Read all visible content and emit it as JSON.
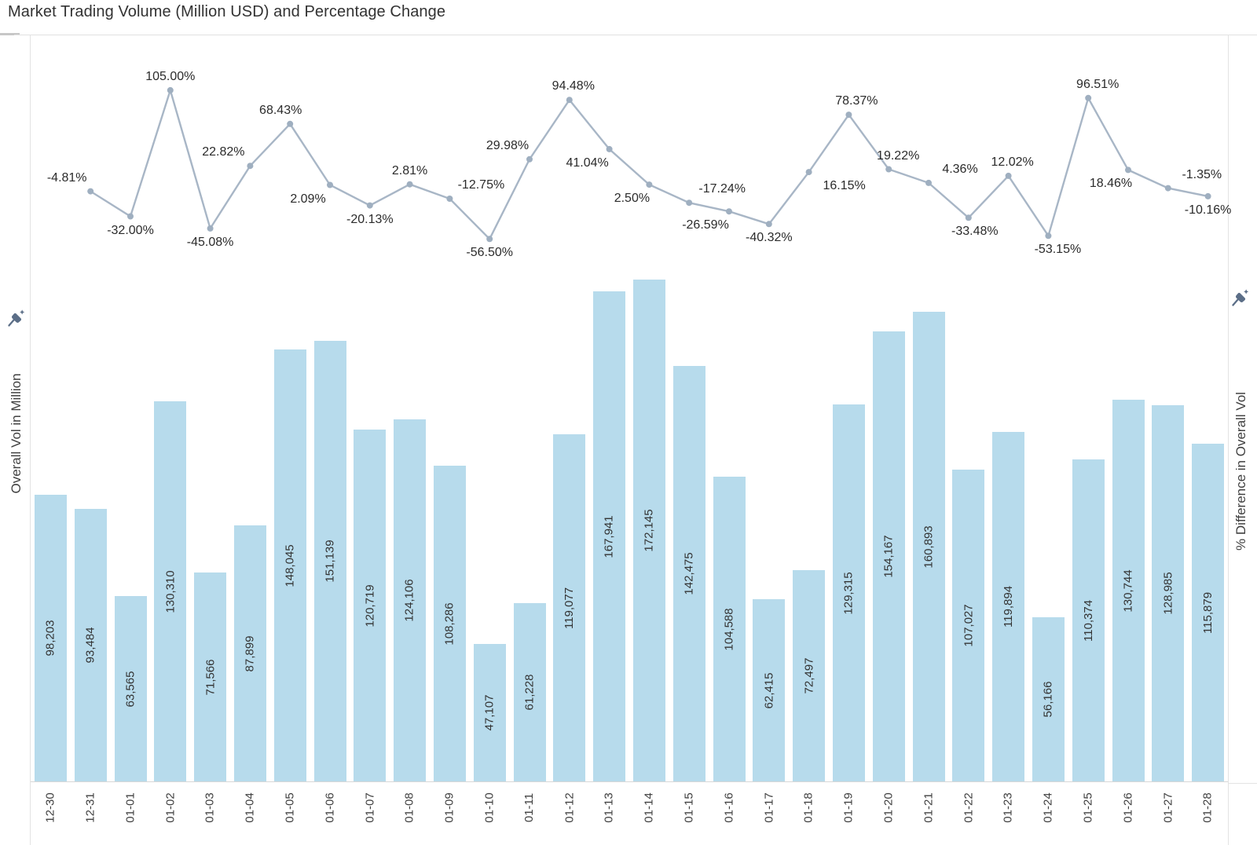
{
  "title": "Market Trading Volume (Million USD) and Percentage Change",
  "axes": {
    "left": {
      "label": "Overall Vol in Million"
    },
    "right": {
      "label": "% Difference in Overall Vol"
    }
  },
  "colors": {
    "bar_fill": "#b7dbec",
    "line_stroke": "#a8b6c6",
    "marker_fill": "#9fafc0",
    "percent_label": "#2b2b2b",
    "bar_label": "#333333",
    "axis_text": "#3f3f3f",
    "border": "#e3e3e3",
    "pin": "#5b6e87"
  },
  "chart_data": {
    "type": "combo",
    "grid": false,
    "legend": "none",
    "categories": [
      "12-30",
      "12-31",
      "01-01",
      "01-02",
      "01-03",
      "01-04",
      "01-05",
      "01-06",
      "01-07",
      "01-08",
      "01-09",
      "01-10",
      "01-11",
      "01-12",
      "01-13",
      "01-14",
      "01-15",
      "01-16",
      "01-17",
      "01-18",
      "01-19",
      "01-20",
      "01-21",
      "01-22",
      "01-23",
      "01-24",
      "01-25",
      "01-26",
      "01-27",
      "01-28"
    ],
    "series": [
      {
        "name": "Overall Vol in Million",
        "type": "bar",
        "axis": "left",
        "label_format": "thousands-comma",
        "values": [
          98203,
          93484,
          63565,
          130310,
          71566,
          87899,
          148045,
          151139,
          120719,
          124106,
          108286,
          47107,
          61228,
          119077,
          167941,
          172145,
          142475,
          104588,
          62415,
          72497,
          129315,
          154167,
          160893,
          107027,
          119894,
          56166,
          110374,
          130744,
          128985,
          115879
        ]
      },
      {
        "name": "% Difference in Overall Vol",
        "type": "line",
        "axis": "right",
        "label_format": "percent-2dp",
        "starts_at_category": "12-31",
        "values": [
          -4.81,
          -32.0,
          105.0,
          -45.08,
          22.82,
          68.43,
          2.09,
          -20.13,
          2.81,
          -12.75,
          -56.5,
          29.98,
          94.48,
          41.04,
          2.5,
          -17.24,
          -26.59,
          -40.32,
          16.15,
          78.37,
          19.22,
          4.36,
          -33.48,
          12.02,
          -53.15,
          96.51,
          18.46,
          -1.35,
          -10.16
        ],
        "label_side": [
          "above",
          "below",
          "above",
          "below",
          "above",
          "above",
          "below",
          "below",
          "above",
          "above",
          "below",
          "above",
          "above",
          "below",
          "below",
          "above",
          "below",
          "below",
          "below",
          "above",
          "above",
          "above",
          "below",
          "above",
          "below",
          "above",
          "below",
          "above",
          "below"
        ],
        "label_dx": [
          -30,
          0,
          0,
          0,
          -34,
          -12,
          -28,
          0,
          0,
          40,
          0,
          -28,
          5,
          -28,
          -22,
          42,
          -30,
          0,
          45,
          10,
          12,
          40,
          8,
          5,
          12,
          12,
          -22,
          43,
          0
        ]
      }
    ],
    "bar_ylim": [
      0,
      180000
    ],
    "line_ylim": [
      -60,
      110
    ]
  }
}
